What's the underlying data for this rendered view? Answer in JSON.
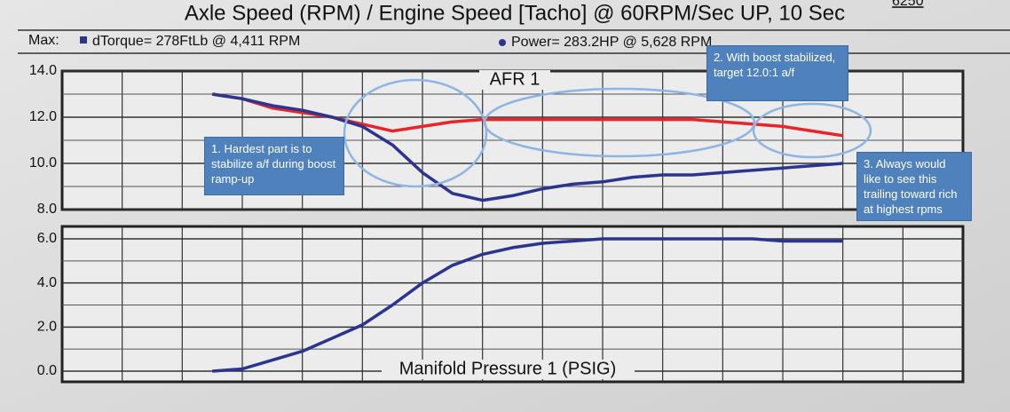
{
  "header": {
    "title": "Axle Speed (RPM) / Engine Speed [Tacho] @ 60RPM/Sec UP, 10 Sec",
    "corner": "6250",
    "max_label": "Max:",
    "torque": "dTorque= 278FtLb @ 4,411 RPM",
    "power": "Power= 283.2HP @ 5,628 RPM"
  },
  "chart_data": [
    {
      "type": "line",
      "title": "AFR 1",
      "categories": [
        null,
        null,
        null,
        null,
        null,
        null,
        null,
        null,
        null,
        null,
        null,
        null,
        null,
        null,
        null,
        null,
        null,
        null,
        null,
        null,
        null,
        null,
        null,
        null,
        null,
        null,
        null,
        null,
        null,
        null,
        null
      ],
      "series": [
        {
          "color": "#e8262a",
          "values": [
            null,
            null,
            null,
            null,
            null,
            13.0,
            12.8,
            12.4,
            12.2,
            12.0,
            11.7,
            11.4,
            11.6,
            11.8,
            11.9,
            11.9,
            11.9,
            11.9,
            11.9,
            11.9,
            11.9,
            11.9,
            11.8,
            11.7,
            11.6,
            11.4,
            11.2,
            null,
            null,
            null,
            null
          ]
        },
        {
          "color": "#2b3590",
          "values": [
            null,
            null,
            null,
            null,
            null,
            13.0,
            12.8,
            12.5,
            12.3,
            12.0,
            11.6,
            10.8,
            9.6,
            8.7,
            8.4,
            8.6,
            8.9,
            9.1,
            9.2,
            9.4,
            9.5,
            9.5,
            9.6,
            9.7,
            9.8,
            9.9,
            10.0,
            null,
            null,
            null,
            null
          ]
        }
      ],
      "ylim": [
        8,
        14
      ],
      "yticks": [
        {
          "value": 8,
          "label": "8.0"
        },
        {
          "value": 10,
          "label": "10.0"
        },
        {
          "value": 12,
          "label": "12.0"
        },
        {
          "value": 14,
          "label": "14.0"
        }
      ],
      "grid": true
    },
    {
      "type": "line",
      "title": "Manifold Pressure 1 (PSIG)",
      "categories": [
        null,
        null,
        null,
        null,
        null,
        null,
        null,
        null,
        null,
        null,
        null,
        null,
        null,
        null,
        null,
        null,
        null,
        null,
        null,
        null,
        null,
        null,
        null,
        null,
        null,
        null,
        null,
        null,
        null,
        null,
        null
      ],
      "series": [
        {
          "color": "#2b3590",
          "values": [
            null,
            null,
            null,
            null,
            null,
            0.0,
            0.1,
            0.5,
            0.9,
            1.5,
            2.1,
            3.0,
            4.0,
            4.8,
            5.3,
            5.6,
            5.8,
            5.9,
            6.0,
            6.0,
            6.0,
            6.0,
            6.0,
            6.0,
            5.9,
            5.9,
            5.9,
            null,
            null,
            null,
            null
          ]
        }
      ],
      "ylim": [
        0,
        6
      ],
      "yticks": [
        {
          "value": 0,
          "label": "0.0"
        },
        {
          "value": 2,
          "label": "2.0"
        },
        {
          "value": 4,
          "label": "4.0"
        },
        {
          "value": 6,
          "label": "6.0"
        }
      ],
      "grid": true
    }
  ],
  "annotations": [
    "1. Hardest part is to stabilize a/f during boost ramp-up",
    "2. With boost stabilized, target 12.0:1 a/f",
    "3. Always would like to see this trailing toward rich at highest rpms"
  ]
}
